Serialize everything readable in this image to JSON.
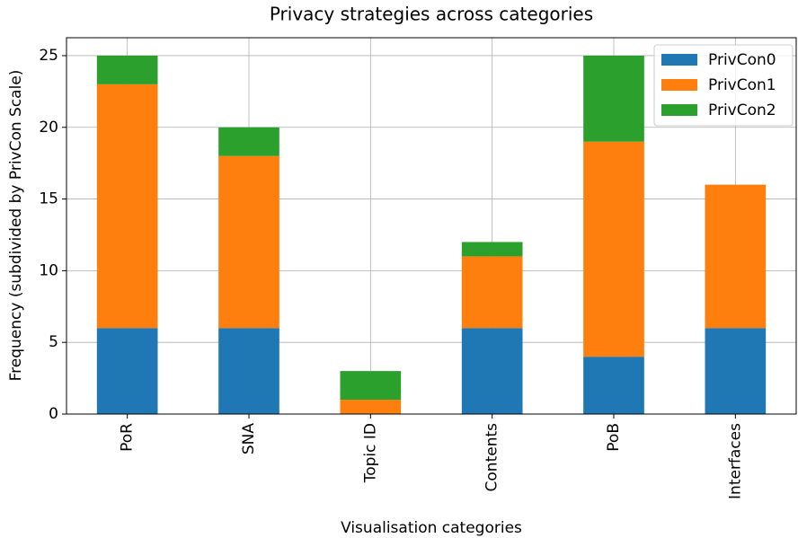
{
  "chart_data": {
    "type": "stacked_bar",
    "title": "Privacy strategies across categories",
    "x_label": "Visualisation categories",
    "y_label": "Frequency (subdivided by PrivCon Scale)",
    "categories": [
      "PoR",
      "SNA",
      "Topic ID",
      "Contents",
      "PoB",
      "Interfaces"
    ],
    "series": [
      {
        "name": "PrivCon0",
        "color": "#1f77b4",
        "values": [
          6,
          6,
          0,
          6,
          4,
          6
        ]
      },
      {
        "name": "PrivCon1",
        "color": "#ff7f0e",
        "values": [
          17,
          12,
          1,
          5,
          15,
          10
        ]
      },
      {
        "name": "PrivCon2",
        "color": "#2ca02c",
        "values": [
          2,
          2,
          2,
          1,
          6,
          0
        ]
      }
    ],
    "ylim": [
      0,
      26.25
    ],
    "yticks": [
      0,
      5,
      10,
      15,
      20,
      25
    ],
    "grid": true,
    "legend": "upper right"
  }
}
